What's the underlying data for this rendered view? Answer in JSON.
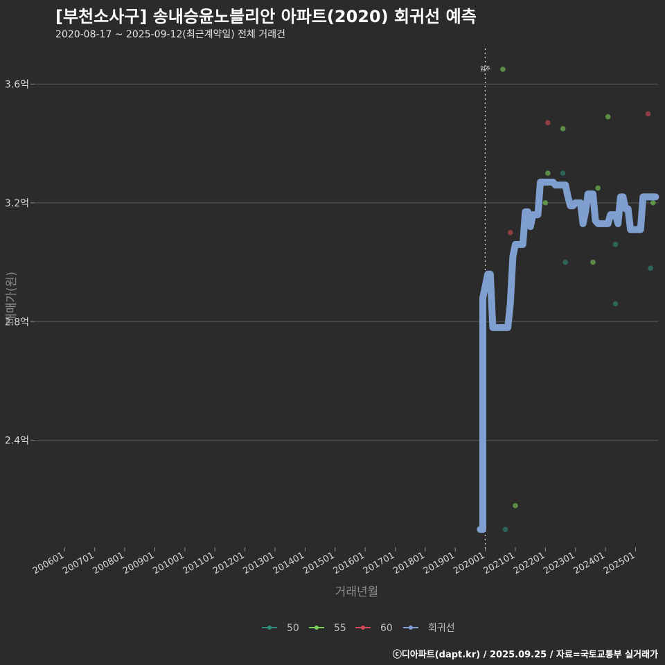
{
  "header": {
    "title": "[부천소사구] 송내승윤노블리안 아파트(2020) 회귀선 예측",
    "subtitle": "2020-08-17 ~ 2025-09-12(최근계약일) 전체 거래건",
    "caption": "ⓒ디아파트(dapt.kr) / 2025.09.25 / 자료=국토교통부 실거래가"
  },
  "colors": {
    "background": "#2b2b2b",
    "grid": "#5a5a5a",
    "series_50": "#2e8b7a",
    "series_55": "#7ccf5a",
    "series_60": "#d04a55",
    "regression": "#7f9fd0"
  },
  "chart_data": {
    "type": "scatter",
    "title": "[부천소사구] 송내승윤노블리안 아파트(2020) 회귀선 예측",
    "xlabel": "거래년월",
    "ylabel": "매매가(원)",
    "x_ticks": [
      "200601",
      "200701",
      "200801",
      "200901",
      "201001",
      "201101",
      "201201",
      "201301",
      "201401",
      "201501",
      "201601",
      "201701",
      "201801",
      "201901",
      "202001",
      "202101",
      "202201",
      "202301",
      "202401",
      "202501"
    ],
    "y_ticks": [
      {
        "value": 2.4,
        "label": "2.4억"
      },
      {
        "value": 2.8,
        "label": "2.8억"
      },
      {
        "value": 3.2,
        "label": "3.2억"
      },
      {
        "value": 3.6,
        "label": "3.6억"
      }
    ],
    "x_range": [
      "2005-01",
      "2025-10"
    ],
    "y_range": [
      2.04,
      3.72
    ],
    "grid": true,
    "legend_position": "bottom",
    "annotation": {
      "x": "2020-01",
      "label": "입주"
    },
    "series": [
      {
        "name": "50",
        "points": [
          {
            "x": "2020-09",
            "y": 2.1
          },
          {
            "x": "2022-09",
            "y": 3.0
          },
          {
            "x": "2022-08",
            "y": 3.3
          },
          {
            "x": "2024-05",
            "y": 3.06
          },
          {
            "x": "2024-05",
            "y": 2.86
          },
          {
            "x": "2025-07",
            "y": 2.98
          }
        ]
      },
      {
        "name": "55",
        "points": [
          {
            "x": "2020-08",
            "y": 3.65
          },
          {
            "x": "2021-01",
            "y": 2.18
          },
          {
            "x": "2022-02",
            "y": 3.3
          },
          {
            "x": "2022-08",
            "y": 3.45
          },
          {
            "x": "2022-01",
            "y": 3.2
          },
          {
            "x": "2023-08",
            "y": 3.0
          },
          {
            "x": "2023-10",
            "y": 3.25
          },
          {
            "x": "2024-02",
            "y": 3.49
          },
          {
            "x": "2025-08",
            "y": 3.2
          }
        ]
      },
      {
        "name": "60",
        "points": [
          {
            "x": "2020-11",
            "y": 3.1
          },
          {
            "x": "2022-02",
            "y": 3.47
          },
          {
            "x": "2025-06",
            "y": 3.5
          }
        ]
      }
    ],
    "regression": {
      "name": "회귀선",
      "points": [
        [
          "2019-11",
          2.1
        ],
        [
          "2019-12",
          2.1
        ],
        [
          "2019-12",
          2.88
        ],
        [
          "2020-01",
          2.92
        ],
        [
          "2020-02",
          2.96
        ],
        [
          "2020-03",
          2.96
        ],
        [
          "2020-04",
          2.78
        ],
        [
          "2020-05",
          2.78
        ],
        [
          "2020-06",
          2.78
        ],
        [
          "2020-07",
          2.78
        ],
        [
          "2020-08",
          2.78
        ],
        [
          "2020-09",
          2.78
        ],
        [
          "2020-10",
          2.78
        ],
        [
          "2020-11",
          2.86
        ],
        [
          "2020-12",
          3.02
        ],
        [
          "2021-01",
          3.06
        ],
        [
          "2021-02",
          3.06
        ],
        [
          "2021-03",
          3.06
        ],
        [
          "2021-04",
          3.06
        ],
        [
          "2021-05",
          3.17
        ],
        [
          "2021-06",
          3.17
        ],
        [
          "2021-07",
          3.12
        ],
        [
          "2021-08",
          3.16
        ],
        [
          "2021-09",
          3.16
        ],
        [
          "2021-10",
          3.16
        ],
        [
          "2021-11",
          3.27
        ],
        [
          "2021-12",
          3.27
        ],
        [
          "2022-01",
          3.27
        ],
        [
          "2022-02",
          3.27
        ],
        [
          "2022-03",
          3.27
        ],
        [
          "2022-04",
          3.27
        ],
        [
          "2022-05",
          3.26
        ],
        [
          "2022-06",
          3.26
        ],
        [
          "2022-07",
          3.26
        ],
        [
          "2022-08",
          3.26
        ],
        [
          "2022-09",
          3.26
        ],
        [
          "2022-10",
          3.22
        ],
        [
          "2022-11",
          3.19
        ],
        [
          "2022-12",
          3.19
        ],
        [
          "2023-01",
          3.2
        ],
        [
          "2023-02",
          3.2
        ],
        [
          "2023-03",
          3.2
        ],
        [
          "2023-04",
          3.13
        ],
        [
          "2023-05",
          3.17
        ],
        [
          "2023-06",
          3.23
        ],
        [
          "2023-07",
          3.23
        ],
        [
          "2023-08",
          3.23
        ],
        [
          "2023-09",
          3.14
        ],
        [
          "2023-10",
          3.13
        ],
        [
          "2023-11",
          3.13
        ],
        [
          "2023-12",
          3.13
        ],
        [
          "2024-01",
          3.13
        ],
        [
          "2024-02",
          3.13
        ],
        [
          "2024-03",
          3.16
        ],
        [
          "2024-04",
          3.16
        ],
        [
          "2024-05",
          3.16
        ],
        [
          "2024-06",
          3.13
        ],
        [
          "2024-07",
          3.22
        ],
        [
          "2024-08",
          3.22
        ],
        [
          "2024-09",
          3.18
        ],
        [
          "2024-10",
          3.18
        ],
        [
          "2024-11",
          3.11
        ],
        [
          "2024-12",
          3.11
        ],
        [
          "2025-01",
          3.11
        ],
        [
          "2025-02",
          3.11
        ],
        [
          "2025-03",
          3.11
        ],
        [
          "2025-04",
          3.22
        ],
        [
          "2025-05",
          3.22
        ],
        [
          "2025-06",
          3.22
        ],
        [
          "2025-07",
          3.22
        ],
        [
          "2025-08",
          3.22
        ],
        [
          "2025-09",
          3.22
        ]
      ]
    },
    "legend": [
      "50",
      "55",
      "60",
      "회귀선"
    ]
  }
}
